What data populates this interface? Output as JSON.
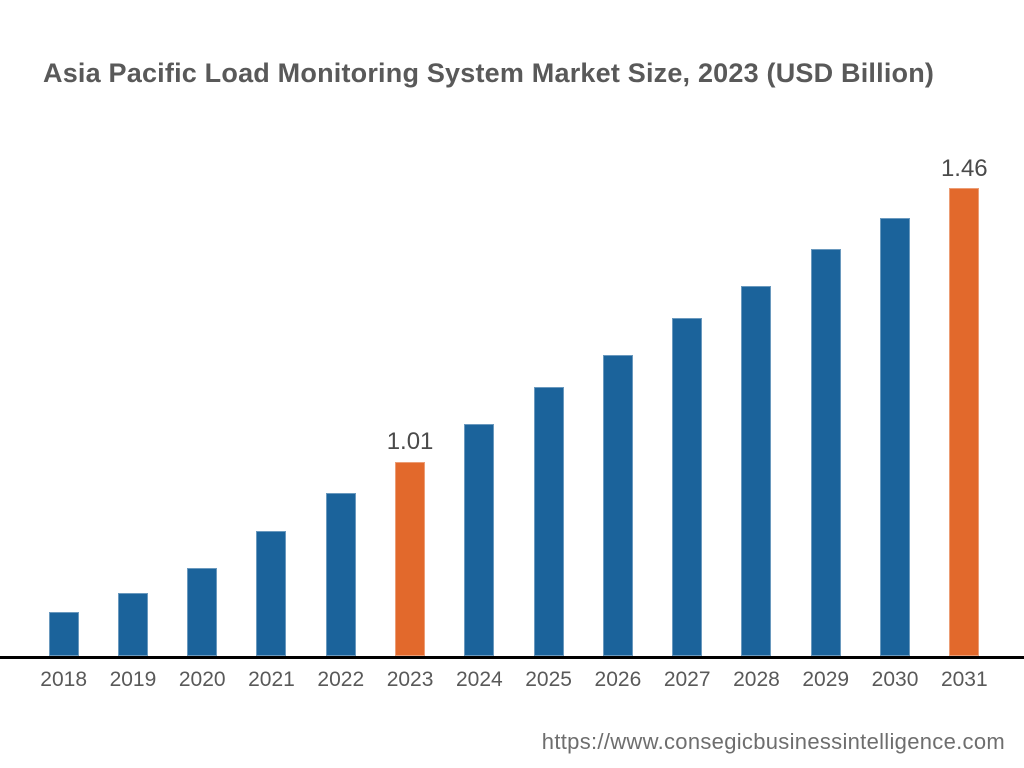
{
  "header": {
    "title": "Asia Pacific Load Monitoring System Market Size, 2023 (USD Billion)"
  },
  "footer": {
    "source_url": "https://www.consegicbusinessintelligence.com"
  },
  "colors": {
    "bar_default": "#1B639B",
    "bar_highlight": "#E2692C",
    "axis_line": "#000000",
    "title_text": "#595959",
    "tick_text": "#595959",
    "value_label_text": "#4A4A4A",
    "footer_text": "#6E6E6E",
    "background": "#FFFFFF"
  },
  "chart_data": {
    "type": "bar",
    "title": "Asia Pacific Load Monitoring System Market Size, 2023 (USD Billion)",
    "xlabel": "",
    "ylabel": "",
    "categories": [
      "2018",
      "2019",
      "2020",
      "2021",
      "2022",
      "2023",
      "2024",
      "2025",
      "2026",
      "2027",
      "2028",
      "2029",
      "2030",
      "2031"
    ],
    "values": [
      0.77,
      0.8,
      0.84,
      0.9,
      0.96,
      1.01,
      1.07,
      1.13,
      1.18,
      1.24,
      1.29,
      1.35,
      1.4,
      1.46
    ],
    "value_labels": [
      "",
      "",
      "",
      "",
      "",
      "1.01",
      "",
      "",
      "",
      "",
      "",
      "",
      "",
      "1.46"
    ],
    "highlighted_categories": [
      "2023",
      "2031"
    ],
    "baseline_value": 0.7,
    "ylim": [
      0.7,
      1.46
    ],
    "grid": false,
    "legend": false,
    "y_axis_shown": false
  }
}
